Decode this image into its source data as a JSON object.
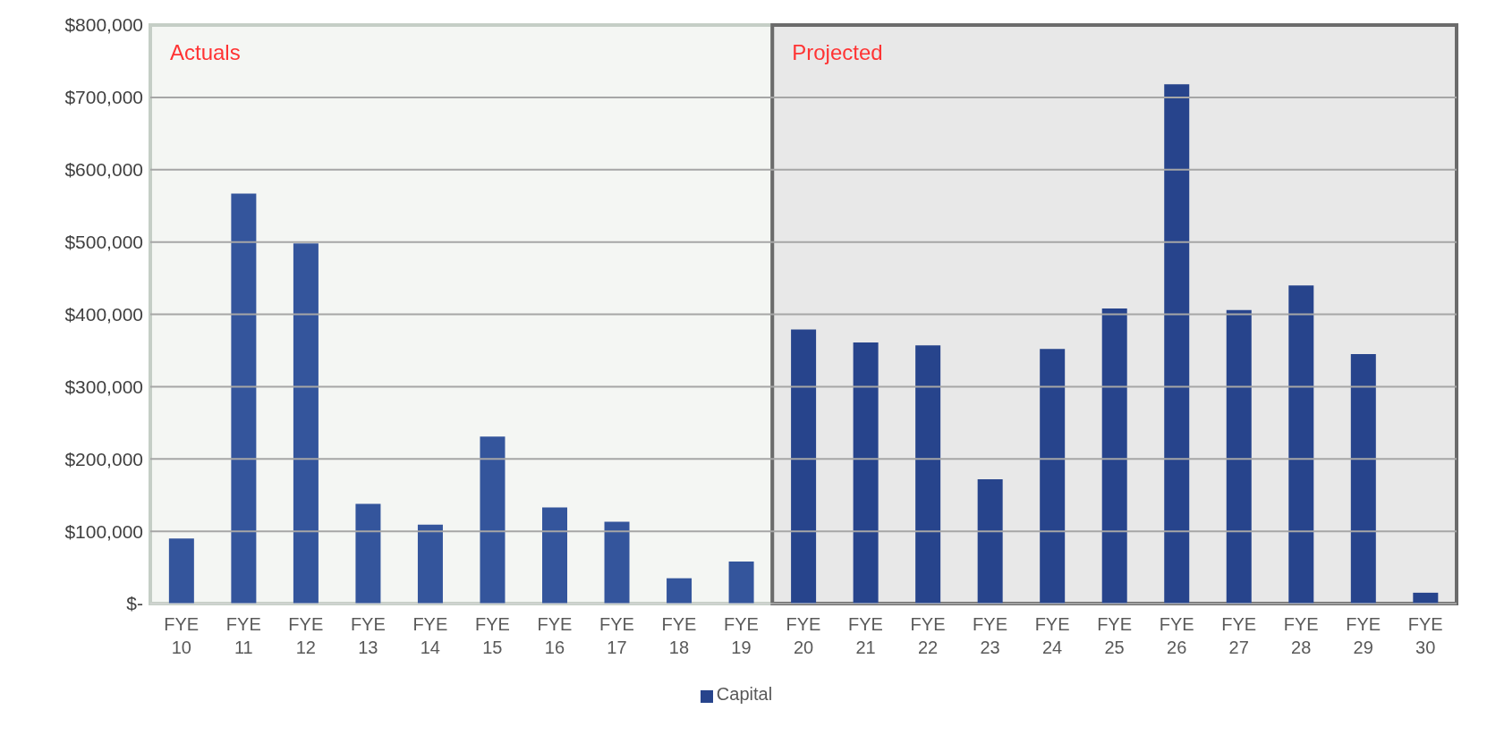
{
  "chart_data": {
    "type": "bar",
    "categories": [
      "FYE 10",
      "FYE 11",
      "FYE 12",
      "FYE 13",
      "FYE 14",
      "FYE 15",
      "FYE 16",
      "FYE 17",
      "FYE 18",
      "FYE 19",
      "FYE 20",
      "FYE 21",
      "FYE 22",
      "FYE 23",
      "FYE 24",
      "FYE 25",
      "FYE 26",
      "FYE 27",
      "FYE 28",
      "FYE 29",
      "FYE 30"
    ],
    "series": [
      {
        "name": "Capital",
        "color": "#27448c",
        "values": [
          90000,
          567000,
          498000,
          138000,
          109000,
          231000,
          133000,
          113000,
          35000,
          58000,
          379000,
          361000,
          357000,
          172000,
          352000,
          408000,
          718000,
          406000,
          440000,
          345000,
          15000
        ],
        "colors": [
          "#34559c",
          "#34559c",
          "#34559c",
          "#34559c",
          "#34559c",
          "#34559c",
          "#34559c",
          "#34559c",
          "#34559c",
          "#34559c",
          "#27448c",
          "#27448c",
          "#27448c",
          "#27448c",
          "#27448c",
          "#27448c",
          "#27448c",
          "#27448c",
          "#27448c",
          "#27448c",
          "#27448c"
        ]
      }
    ],
    "ylim": [
      0,
      800000
    ],
    "yticks": [
      {
        "value": 0,
        "label": "$-"
      },
      {
        "value": 100000,
        "label": "$100,000"
      },
      {
        "value": 200000,
        "label": "$200,000"
      },
      {
        "value": 300000,
        "label": "$300,000"
      },
      {
        "value": 400000,
        "label": "$400,000"
      },
      {
        "value": 500000,
        "label": "$500,000"
      },
      {
        "value": 600000,
        "label": "$600,000"
      },
      {
        "value": 700000,
        "label": "$700,000"
      },
      {
        "value": 800000,
        "label": "$800,000"
      }
    ],
    "bands": [
      {
        "axis": "x",
        "from": "FYE 10",
        "to": "FYE 19",
        "label": "Actuals",
        "color": "#f4f6f3"
      },
      {
        "axis": "x",
        "from": "FYE 20",
        "to": "FYE 30",
        "label": "Projected",
        "color": "#e8e8e8"
      }
    ],
    "grid": "y",
    "legend": "bottom"
  }
}
